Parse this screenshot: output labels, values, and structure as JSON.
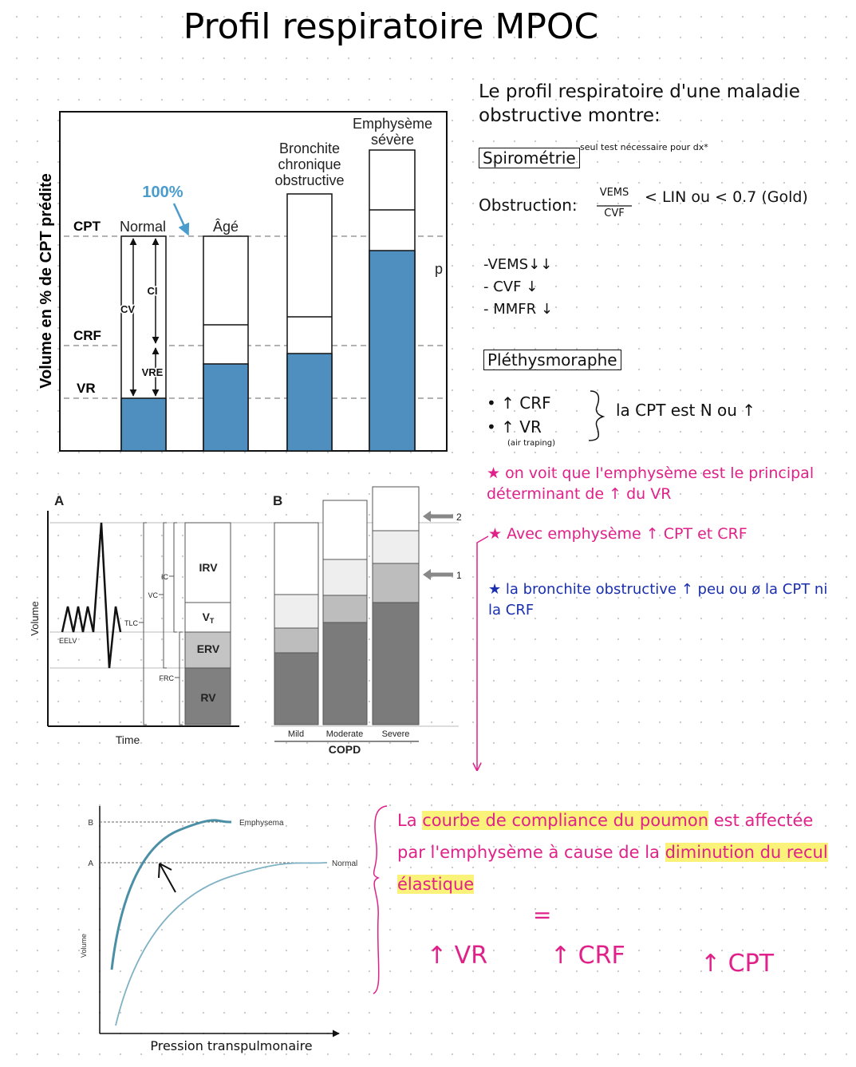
{
  "title": "Profil respiratoire MPOC",
  "figure1": {
    "y_label": "Volume en % de CPT prédite",
    "levels": [
      "CPT",
      "CRF",
      "VR"
    ],
    "annotation": "100%",
    "bars": [
      "Normal",
      "Âgé",
      "Bronchite chronique obstructive",
      "Emphysème sévère"
    ],
    "arrows": [
      "CV",
      "CI",
      "VRE"
    ],
    "stray_mark": "p"
  },
  "figure2": {
    "panel_a": {
      "label": "A",
      "y_label": "Volume",
      "x_label": "Time",
      "eelv": "EELV",
      "segments": [
        "IRV",
        {
          "text": "V",
          "sub": "T"
        },
        "ERV",
        "RV"
      ],
      "brackets": [
        "IC",
        "VC",
        "TLC",
        "FRC"
      ]
    },
    "panel_b": {
      "label": "B",
      "categories": [
        "Mild",
        "Moderate",
        "Severe"
      ],
      "group": "COPD",
      "markers": [
        "2",
        "1"
      ]
    }
  },
  "figure3": {
    "y_label": "Volume",
    "x_label": "Pression transpulmonaire",
    "levels": [
      "B",
      "A"
    ],
    "curves": [
      "Emphysema",
      "Normal"
    ]
  },
  "notes": {
    "intro": [
      "Le profil respiratoire d'une maladie",
      "obstructive montre:"
    ],
    "spirometry": {
      "box": "Spirométrie",
      "aside": "seul test nécessaire pour dx*"
    },
    "obstruction": {
      "label": "Obstruction:",
      "numerator": "VEMS",
      "denominator": "CVF",
      "criteria": "< LIN ou < 0.7 (Gold)"
    },
    "spirometry_findings": [
      "-VEMS↓↓",
      "- CVF ↓",
      "- MMFR ↓"
    ],
    "plethysmography": {
      "box": "Pléthysmoraphe",
      "findings": [
        "• ↑ CRF",
        "• ↑ VR"
      ],
      "aside": "(air traping)",
      "conclusion": "la CPT est N ou ↑"
    },
    "stars": [
      "★ on voit que l'emphysème est le principal déterminant de ↑ du VR",
      "★ Avec emphysème ↑ CPT et CRF",
      "★ la bronchite obstructive ↑ peu ou ø la CPT ni la CRF"
    ],
    "compliance": [
      "La ",
      "courbe de compliance du poumon",
      " est affectée par l'emphysème à cause de la ",
      "diminution du recul élastique"
    ],
    "equals": "=",
    "results": [
      "↑ VR",
      "↑ CRF",
      "↑ CPT"
    ]
  }
}
